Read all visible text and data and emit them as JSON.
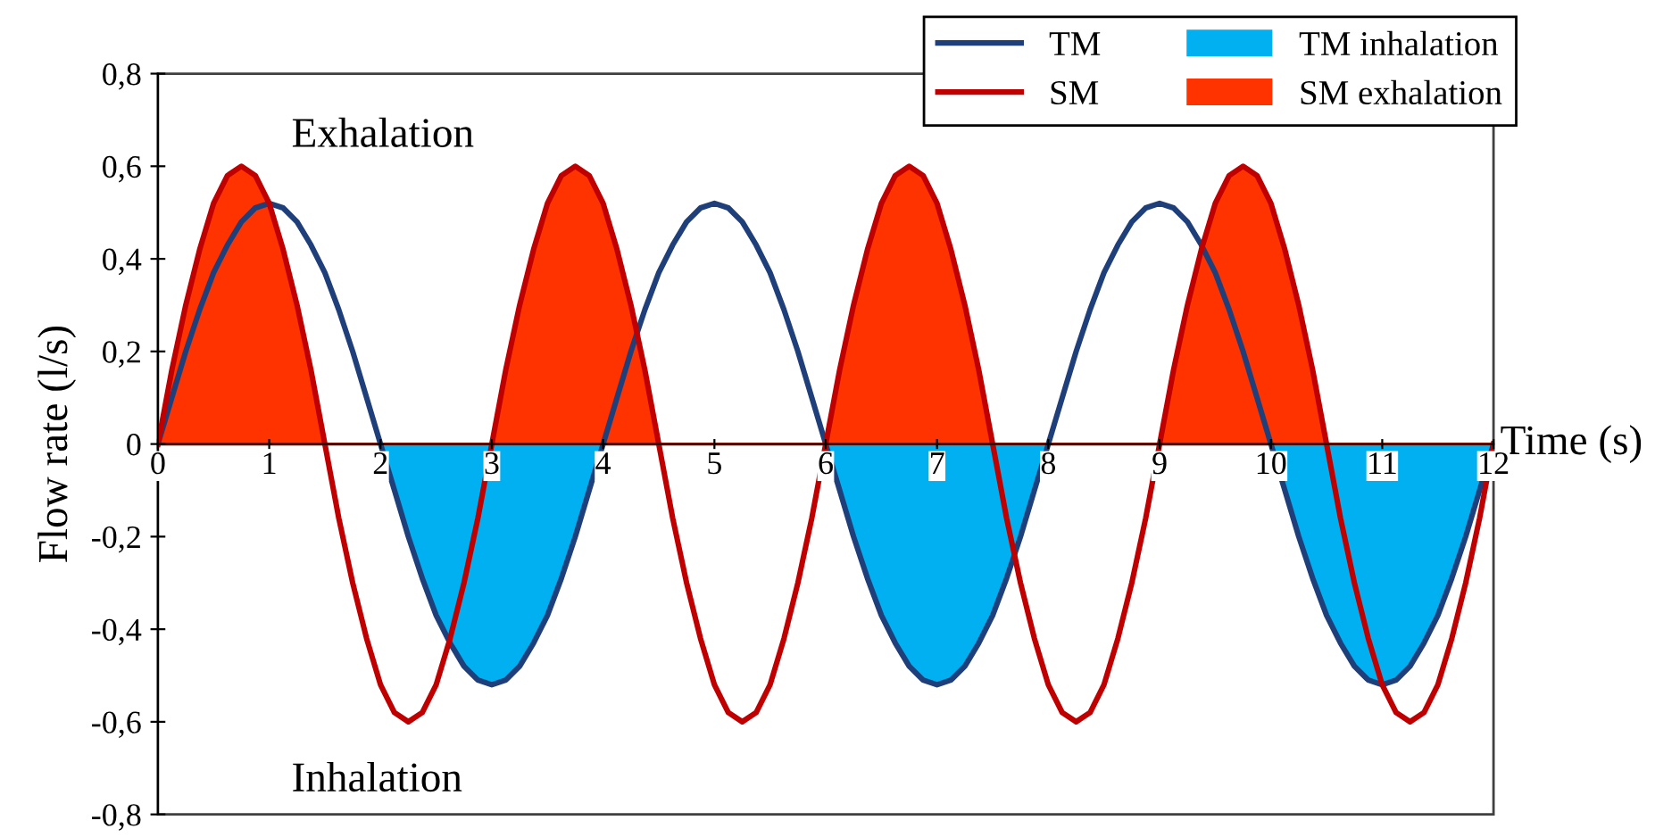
{
  "chart_data": {
    "type": "line",
    "xlabel": "Time (s)",
    "ylabel": "Flow rate (l/s)",
    "annotations": [
      "Exhalation",
      "Inhalation"
    ],
    "x": [
      0,
      0.125,
      0.25,
      0.375,
      0.5,
      0.625,
      0.75,
      0.875,
      1,
      1.125,
      1.25,
      1.375,
      1.5,
      1.625,
      1.75,
      1.875,
      2,
      2.125,
      2.25,
      2.375,
      2.5,
      2.625,
      2.75,
      2.875,
      3,
      3.125,
      3.25,
      3.375,
      3.5,
      3.625,
      3.75,
      3.875,
      4,
      4.125,
      4.25,
      4.375,
      4.5,
      4.625,
      4.75,
      4.875,
      5,
      5.125,
      5.25,
      5.375,
      5.5,
      5.625,
      5.75,
      5.875,
      6,
      6.125,
      6.25,
      6.375,
      6.5,
      6.625,
      6.75,
      6.875,
      7,
      7.125,
      7.25,
      7.375,
      7.5,
      7.625,
      7.75,
      7.875,
      8,
      8.125,
      8.25,
      8.375,
      8.5,
      8.625,
      8.75,
      8.875,
      9,
      9.125,
      9.25,
      9.375,
      9.5,
      9.625,
      9.75,
      9.875,
      10,
      10.125,
      10.25,
      10.375,
      10.5,
      10.625,
      10.75,
      10.875,
      11,
      11.125,
      11.25,
      11.375,
      11.5,
      11.625,
      11.75,
      11.875,
      12
    ],
    "series": [
      {
        "name": "TM inhalation",
        "type": "area",
        "color": "#00b0f0",
        "values": [
          0,
          0,
          0,
          0,
          0,
          0,
          0,
          0,
          0,
          0,
          0,
          0,
          0,
          0,
          0,
          0,
          0,
          -0.1,
          -0.2,
          -0.29,
          -0.37,
          -0.43,
          -0.48,
          -0.51,
          -0.52,
          -0.51,
          -0.48,
          -0.43,
          -0.37,
          -0.29,
          -0.2,
          -0.1,
          0,
          0,
          0,
          0,
          0,
          0,
          0,
          0,
          0,
          0,
          0,
          0,
          0,
          0,
          0,
          0,
          0,
          -0.1,
          -0.2,
          -0.29,
          -0.37,
          -0.43,
          -0.48,
          -0.51,
          -0.52,
          -0.51,
          -0.48,
          -0.43,
          -0.37,
          -0.29,
          -0.2,
          -0.1,
          0,
          0,
          0,
          0,
          0,
          0,
          0,
          0,
          0,
          0,
          0,
          0,
          0,
          0,
          0,
          0,
          0,
          -0.1,
          -0.2,
          -0.29,
          -0.37,
          -0.43,
          -0.48,
          -0.51,
          -0.52,
          -0.51,
          -0.48,
          -0.43,
          -0.37,
          -0.29,
          -0.2,
          -0.1,
          0
        ]
      },
      {
        "name": "TM",
        "color": "#1f3f7a",
        "values": [
          0,
          0.1,
          0.2,
          0.29,
          0.37,
          0.43,
          0.48,
          0.51,
          0.52,
          0.51,
          0.48,
          0.43,
          0.37,
          0.29,
          0.2,
          0.1,
          0,
          -0.1,
          -0.2,
          -0.29,
          -0.37,
          -0.43,
          -0.48,
          -0.51,
          -0.52,
          -0.51,
          -0.48,
          -0.43,
          -0.37,
          -0.29,
          -0.2,
          -0.1,
          0,
          0.1,
          0.2,
          0.29,
          0.37,
          0.43,
          0.48,
          0.51,
          0.52,
          0.51,
          0.48,
          0.43,
          0.37,
          0.29,
          0.2,
          0.1,
          0,
          -0.1,
          -0.2,
          -0.29,
          -0.37,
          -0.43,
          -0.48,
          -0.51,
          -0.52,
          -0.51,
          -0.48,
          -0.43,
          -0.37,
          -0.29,
          -0.2,
          -0.1,
          0,
          0.1,
          0.2,
          0.29,
          0.37,
          0.43,
          0.48,
          0.51,
          0.52,
          0.51,
          0.48,
          0.43,
          0.37,
          0.29,
          0.2,
          0.1,
          0,
          -0.1,
          -0.2,
          -0.29,
          -0.37,
          -0.43,
          -0.48,
          -0.51,
          -0.52,
          -0.51,
          -0.48,
          -0.43,
          -0.37,
          -0.29,
          -0.2,
          -0.1,
          0
        ]
      },
      {
        "name": "SM exhalation",
        "type": "area",
        "color": "#ff3300",
        "values": [
          0,
          0.16,
          0.3,
          0.42,
          0.52,
          0.58,
          0.6,
          0.58,
          0.52,
          0.42,
          0.3,
          0.16,
          0,
          0,
          0,
          0,
          0,
          0,
          0,
          0,
          0,
          0,
          0,
          0,
          0,
          0.16,
          0.3,
          0.42,
          0.52,
          0.58,
          0.6,
          0.58,
          0.52,
          0.42,
          0.3,
          0.16,
          0,
          0,
          0,
          0,
          0,
          0,
          0,
          0,
          0,
          0,
          0,
          0,
          0,
          0.16,
          0.3,
          0.42,
          0.52,
          0.58,
          0.6,
          0.58,
          0.52,
          0.42,
          0.3,
          0.16,
          0,
          0,
          0,
          0,
          0,
          0,
          0,
          0,
          0,
          0,
          0,
          0,
          0,
          0.16,
          0.3,
          0.42,
          0.52,
          0.58,
          0.6,
          0.58,
          0.52,
          0.42,
          0.3,
          0.16,
          0,
          0,
          0,
          0,
          0,
          0,
          0,
          0,
          0,
          0,
          0,
          0,
          0
        ]
      },
      {
        "name": "SM",
        "color": "#c00000",
        "values": [
          0,
          0.16,
          0.3,
          0.42,
          0.52,
          0.58,
          0.6,
          0.58,
          0.52,
          0.42,
          0.3,
          0.16,
          0,
          -0.16,
          -0.3,
          -0.42,
          -0.52,
          -0.58,
          -0.6,
          -0.58,
          -0.52,
          -0.42,
          -0.3,
          -0.16,
          0,
          0.16,
          0.3,
          0.42,
          0.52,
          0.58,
          0.6,
          0.58,
          0.52,
          0.42,
          0.3,
          0.16,
          0,
          -0.16,
          -0.3,
          -0.42,
          -0.52,
          -0.58,
          -0.6,
          -0.58,
          -0.52,
          -0.42,
          -0.3,
          -0.16,
          0,
          0.16,
          0.3,
          0.42,
          0.52,
          0.58,
          0.6,
          0.58,
          0.52,
          0.42,
          0.3,
          0.16,
          0,
          -0.16,
          -0.3,
          -0.42,
          -0.52,
          -0.58,
          -0.6,
          -0.58,
          -0.52,
          -0.42,
          -0.3,
          -0.16,
          0,
          0.16,
          0.3,
          0.42,
          0.52,
          0.58,
          0.6,
          0.58,
          0.52,
          0.42,
          0.3,
          0.16,
          0,
          -0.16,
          -0.3,
          -0.42,
          -0.52,
          -0.58,
          -0.6,
          -0.58,
          -0.52,
          -0.42,
          -0.3,
          -0.16,
          0
        ]
      }
    ],
    "xlim": [
      0,
      12
    ],
    "xticks": [
      0,
      1,
      2,
      3,
      4,
      5,
      6,
      7,
      8,
      9,
      10,
      11,
      12
    ],
    "ylim": [
      -0.8,
      0.8
    ],
    "yticks": [
      {
        "value": -0.8,
        "label": "-0,8"
      },
      {
        "value": -0.6,
        "label": "-0,6"
      },
      {
        "value": -0.4,
        "label": "-0,4"
      },
      {
        "value": -0.2,
        "label": "-0,2"
      },
      0,
      {
        "value": 0.2,
        "label": "0,2"
      },
      {
        "value": 0.4,
        "label": "0,4"
      },
      {
        "value": 0.6,
        "label": "0,6"
      },
      {
        "value": 0.8,
        "label": "0,8"
      }
    ],
    "legend": "top right",
    "grid": false,
    "marker": "none",
    "line_style": "solid"
  }
}
